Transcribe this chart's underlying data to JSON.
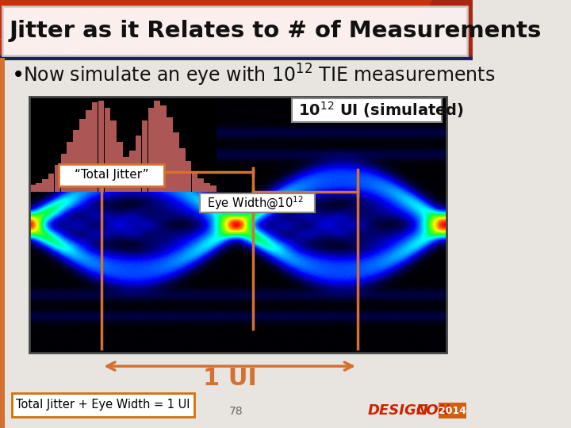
{
  "title": "Jitter as it Relates to # of Measurements",
  "bullet_text": "Now simulate an eye with 10",
  "bullet_exp": "12",
  "bullet_suffix": " TIE measurements",
  "label_simulated_base": "10",
  "label_simulated_exp": "12",
  "label_simulated_suffix": " UI (simulated)",
  "label_total_jitter": "“Total Jitter”",
  "label_eye_width_base": "Eye Width@10",
  "label_eye_width_exp": "12",
  "label_1ui": "1 UI",
  "label_bottom": "Total Jitter + Eye Width = 1 UI",
  "page_number": "78",
  "bg_color": "#e8e4df",
  "orange": "#d47030",
  "header_bg": "#c83010",
  "title_bg": "#ffffff",
  "hist_color": "#c06060",
  "bottom_box_edge": "#d4700a"
}
